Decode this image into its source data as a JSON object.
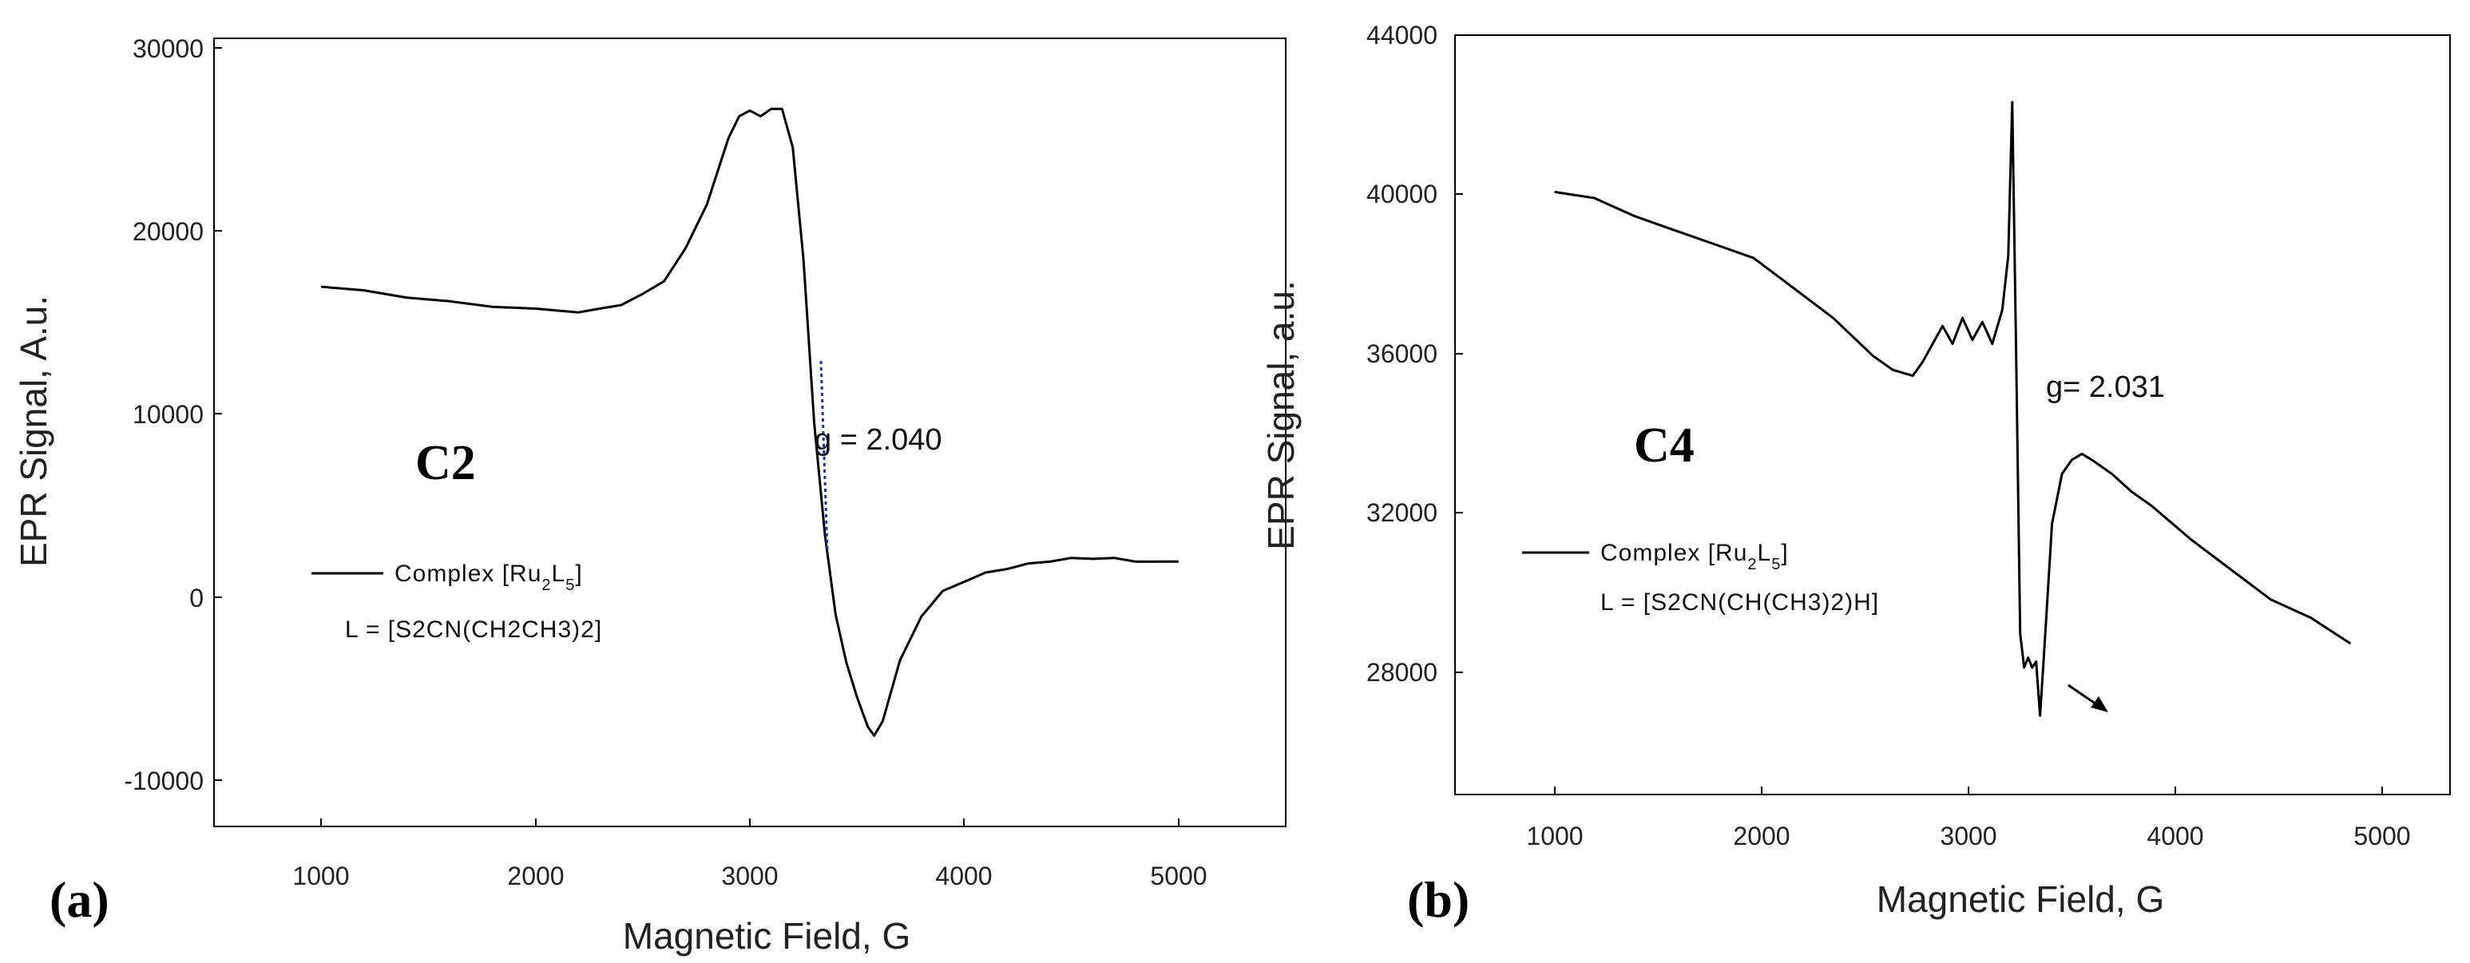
{
  "chart_data": [
    {
      "type": "line",
      "panel_label": "(a)",
      "tag": "C2",
      "xlabel": "Magnetic Field, G",
      "ylabel": "EPR Signal, A.u.",
      "xlim": [
        500,
        5500
      ],
      "ylim": [
        -13000,
        30000
      ],
      "xticks": [
        "1000",
        "2000",
        "3000",
        "4000",
        "5000"
      ],
      "yticks": [
        "-10000",
        "0",
        "10000",
        "20000",
        "30000"
      ],
      "annotation": "g = 2.040",
      "legend": {
        "line1": {
          "text": "Complex [Ru",
          "sub1": "2",
          "mid": "L",
          "sub2": "5",
          "end": "]"
        },
        "line2": "L = [S2CN(CH2CH3)2]"
      },
      "series": [
        {
          "name": "Complex [Ru2L5]",
          "x": [
            1000,
            1200,
            1400,
            1600,
            1800,
            2000,
            2200,
            2300,
            2400,
            2500,
            2600,
            2700,
            2800,
            2900,
            2950,
            3000,
            3050,
            3100,
            3150,
            3200,
            3250,
            3300,
            3350,
            3400,
            3450,
            3500,
            3550,
            3580,
            3620,
            3700,
            3800,
            3900,
            4000,
            4100,
            4200,
            4300,
            4400,
            4500,
            4600,
            4700,
            4800,
            5000
          ],
          "y": [
            16500,
            16200,
            15900,
            15600,
            15400,
            15200,
            15100,
            15200,
            15500,
            16000,
            16800,
            18500,
            21000,
            24500,
            25800,
            26000,
            25800,
            26100,
            26200,
            24000,
            18000,
            9000,
            3000,
            -1500,
            -4000,
            -6000,
            -7500,
            -8100,
            -7200,
            -4000,
            -1500,
            -200,
            400,
            800,
            1100,
            1300,
            1500,
            1600,
            1650,
            1600,
            1500,
            1400
          ]
        }
      ]
    },
    {
      "type": "line",
      "panel_label": "(b)",
      "tag": "C4",
      "xlabel": "Magnetic Field, G",
      "ylabel": "EPR Signal, a.u.",
      "xlim": [
        500,
        5500
      ],
      "ylim": [
        25000,
        44000
      ],
      "xticks": [
        "1000",
        "2000",
        "3000",
        "4000",
        "5000"
      ],
      "yticks": [
        "28000",
        "32000",
        "36000",
        "40000",
        "44000"
      ],
      "annotation": "g= 2.031",
      "legend": {
        "line1": {
          "text": "Complex [Ru",
          "sub1": "2",
          "mid": "L",
          "sub2": "5",
          "end": "]"
        },
        "line2": "L = [S2CN(CH(CH3)2)H]"
      },
      "series": [
        {
          "name": "Complex [Ru2L5]",
          "x": [
            1000,
            1200,
            1400,
            1600,
            1800,
            2000,
            2200,
            2400,
            2600,
            2700,
            2800,
            2850,
            2900,
            2950,
            3000,
            3050,
            3100,
            3150,
            3200,
            3250,
            3280,
            3300,
            3320,
            3340,
            3360,
            3380,
            3400,
            3420,
            3440,
            3460,
            3500,
            3550,
            3600,
            3650,
            3700,
            3800,
            3900,
            4000,
            4200,
            4400,
            4600,
            4800,
            5000
          ],
          "y": [
            40100,
            39900,
            39500,
            39100,
            38800,
            38400,
            37700,
            36900,
            36000,
            35600,
            35500,
            35800,
            36300,
            36700,
            36300,
            36900,
            36400,
            36800,
            36300,
            37100,
            38500,
            42300,
            36000,
            29000,
            28200,
            28400,
            28200,
            28300,
            27000,
            28500,
            31800,
            33000,
            33400,
            33500,
            33400,
            33000,
            32600,
            32200,
            31400,
            30600,
            29900,
            29400,
            28800
          ]
        }
      ]
    }
  ]
}
